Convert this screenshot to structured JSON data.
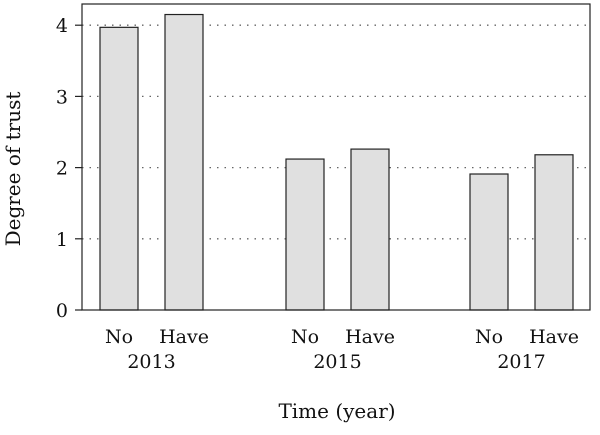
{
  "chart_data": {
    "type": "bar",
    "title": "",
    "xlabel": "Time (year)",
    "ylabel": "Degree of trust",
    "ylim": [
      0,
      4.1
    ],
    "yticks": [
      0,
      1,
      2,
      3,
      4
    ],
    "grid": "horizontal dotted",
    "legend": "none",
    "groups": [
      {
        "label": "2013",
        "bars": [
          {
            "category": "No",
            "value": 3.97
          },
          {
            "category": "Have",
            "value": 4.15
          }
        ]
      },
      {
        "label": "2015",
        "bars": [
          {
            "category": "No",
            "value": 2.12
          },
          {
            "category": "Have",
            "value": 2.26
          }
        ]
      },
      {
        "label": "2017",
        "bars": [
          {
            "category": "No",
            "value": 1.91
          },
          {
            "category": "Have",
            "value": 2.18
          }
        ]
      }
    ],
    "bar_fill": "#e0e0e0",
    "bar_stroke": "#222222"
  }
}
